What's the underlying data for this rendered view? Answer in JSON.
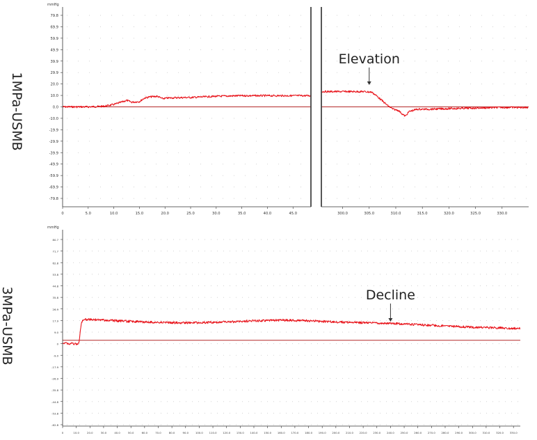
{
  "colors": {
    "trace": "#e8141b",
    "baseline": "#b42828",
    "grid": "#c8c8c8",
    "axis": "#333333"
  },
  "chart_data": [
    {
      "type": "line",
      "row_label": "1MPa-USMB",
      "unit_label": "mmHg",
      "y_ticks": [
        "79.8",
        "69.9",
        "59.9",
        "49.9",
        "39.9",
        "29.9",
        "20.0",
        "10.0",
        "0.0",
        "-10.0",
        "-19.9",
        "-29.9",
        "-39.9",
        "-49.9",
        "-59.9",
        "-69.9",
        "-79.8"
      ],
      "ylim": [
        -85,
        85
      ],
      "grid": true,
      "panels": [
        {
          "xlim": [
            0,
            48.5
          ],
          "x_ticks": [
            "0",
            "5.0",
            "10.0",
            "15.0",
            "20.0",
            "25.0",
            "30.0",
            "35.0",
            "40.0",
            "45.0"
          ],
          "x_tick_values": [
            0,
            5,
            10,
            15,
            20,
            25,
            30,
            35,
            40,
            45
          ],
          "series": [
            {
              "x": [
                0,
                5,
                8,
                10,
                11.5,
                12.5,
                13.5,
                15,
                16,
                17,
                18.5,
                19.5,
                20.5,
                22,
                25,
                30,
                35,
                40,
                45,
                48.5
              ],
              "y": [
                0,
                0,
                0.5,
                2,
                4,
                5.5,
                4,
                4.5,
                7.5,
                8.5,
                9,
                7,
                7.5,
                7.8,
                8,
                9,
                9.5,
                9.5,
                9.5,
                9.5
              ]
            }
          ]
        },
        {
          "xlim": [
            296,
            335
          ],
          "x_ticks": [
            "300.0",
            "305.0",
            "310.0",
            "315.0",
            "320.0",
            "325.0",
            "330.0"
          ],
          "x_tick_values": [
            300,
            305,
            310,
            315,
            320,
            325,
            330
          ],
          "series": [
            {
              "x": [
                296,
                300,
                304,
                305.5,
                306.5,
                307.5,
                308.5,
                309.5,
                310.5,
                311.2,
                311.8,
                312.5,
                314,
                316,
                320,
                325,
                330,
                335
              ],
              "y": [
                13,
                13,
                13,
                12.5,
                9,
                5,
                1,
                -2,
                -3,
                -6,
                -8,
                -4,
                -2,
                -2,
                -1.5,
                -1,
                -0.5,
                -0.5
              ]
            }
          ]
        }
      ],
      "annotation": {
        "text": "Elevation",
        "x": 305,
        "panel": 1
      }
    },
    {
      "type": "line",
      "row_label": "3MPa-USMB",
      "unit_label": "mmHg",
      "y_ticks": [
        "80.7",
        "71.7",
        "62.8",
        "53.8",
        "44.8",
        "35.8",
        "26.9",
        "17.9",
        "9.0",
        "0",
        "-9.0",
        "-17.9",
        "-26.9",
        "-35.8",
        "-44.8",
        "-53.8",
        "-62.8"
      ],
      "ylim": [
        -66,
        85
      ],
      "grid": true,
      "panels": [
        {
          "xlim": [
            0,
            335
          ],
          "x_ticks": [
            "0",
            "10.0",
            "20.0",
            "30.0",
            "40.0",
            "50.0",
            "60.0",
            "70.0",
            "80.0",
            "90.0",
            "100.0",
            "110.0",
            "120.0",
            "130.0",
            "140.0",
            "150.0",
            "160.0",
            "170.0",
            "180.0",
            "190.0",
            "200.0",
            "210.0",
            "220.0",
            "230.0",
            "240.0",
            "250.0",
            "260.0",
            "270.0",
            "280.0",
            "290.0",
            "300.0",
            "310.0",
            "320.0",
            "330.0"
          ],
          "x_tick_values": [
            0,
            10,
            20,
            30,
            40,
            50,
            60,
            70,
            80,
            90,
            100,
            110,
            120,
            130,
            140,
            150,
            160,
            170,
            180,
            190,
            200,
            210,
            220,
            230,
            240,
            250,
            260,
            270,
            280,
            290,
            300,
            310,
            320,
            330
          ],
          "series": [
            {
              "x": [
                0,
                5,
                10,
                12,
                13,
                14,
                15,
                20,
                40,
                60,
                80,
                100,
                120,
                140,
                160,
                180,
                200,
                220,
                240,
                260,
                280,
                300,
                320,
                335
              ],
              "y": [
                -2,
                -2.5,
                -3,
                -2.5,
                8,
                14,
                16,
                16,
                15,
                14,
                13.5,
                13.5,
                14,
                15,
                15.5,
                15,
                14,
                13.5,
                13,
                12,
                11,
                10,
                9.5,
                9
              ]
            }
          ]
        }
      ],
      "annotation": {
        "text": "Decline",
        "x": 240,
        "panel": 0
      }
    }
  ]
}
